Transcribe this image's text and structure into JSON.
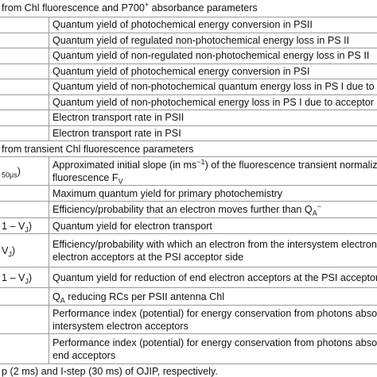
{
  "table": {
    "rows": [
      {
        "section": [
          [
            "from Chl fluorescence and P700",
            {
              "sup": "+"
            },
            " absorbance parameters"
          ]
        ]
      },
      {
        "right": [
          [
            "Quantum yield of photochemical energy conversion in PSII"
          ]
        ]
      },
      {
        "right": [
          [
            "Quantum yield of regulated non-photochemical energy loss in PS II"
          ]
        ]
      },
      {
        "right": [
          [
            "Quantum yield of non-regulated non-photochemical energy loss in PS II"
          ]
        ]
      },
      {
        "right": [
          [
            "Quantum yield of photochemical energy conversion in PSI"
          ]
        ]
      },
      {
        "right": [
          [
            "Quantum yield of non-photochemical quantum energy loss in PS I due to donor"
          ]
        ]
      },
      {
        "right": [
          [
            "Quantum yield of non-photochemical energy loss in PS I due to acceptor"
          ]
        ]
      },
      {
        "right": [
          [
            "Electron transport rate in PSII"
          ]
        ]
      },
      {
        "right": [
          [
            "Electron transport rate in PSI"
          ]
        ]
      },
      {
        "section": [
          [
            "from transient Chl fluorescence parameters"
          ]
        ]
      },
      {
        "left": [
          [
            {
              "sub": "50μs"
            },
            ")"
          ]
        ],
        "right": [
          [
            "Approximated initial slope (in ms",
            {
              "sup": "−1"
            },
            ") of the fluorescence transient normalized on"
          ],
          [
            "fluorescence F",
            {
              "sub": "V"
            }
          ]
        ]
      },
      {
        "right": [
          [
            "Maximum quantum yield for primary photochemistry"
          ]
        ]
      },
      {
        "right": [
          [
            "Efficiency/probability that an electron moves further than Q",
            {
              "sub": "A"
            },
            {
              "sup": "−"
            }
          ]
        ]
      },
      {
        "left": [
          [
            "1 – V",
            {
              "sub": "J"
            },
            ")"
          ]
        ],
        "right": [
          [
            "Quantum yield for electron transport"
          ]
        ]
      },
      {
        "left": [
          [
            "V",
            {
              "sub": "J"
            },
            ")"
          ]
        ],
        "right": [
          [
            "Efficiency/probability with which an electron from the intersystem electron carriers"
          ],
          [
            "electron acceptors at the PSI acceptor side"
          ]
        ]
      },
      {
        "left": [
          [
            "1 – V",
            {
              "sub": "J"
            },
            ")"
          ]
        ],
        "right": [
          [
            "Quantum yield for reduction of end electron acceptors at the PSI acceptor side"
          ]
        ]
      },
      {
        "right": [
          [
            "Q",
            {
              "sub": "A"
            },
            " reducing RCs per PSII antenna Chl"
          ]
        ]
      },
      {
        "right": [
          [
            "Performance index (potential) for energy conservation from photons absorbed"
          ],
          [
            "intersystem electron acceptors"
          ]
        ]
      },
      {
        "right": [
          [
            "Performance index (potential) for energy conservation from photons absorbed"
          ],
          [
            "end acceptors"
          ]
        ]
      }
    ],
    "footnote": "p (2 ms) and I-step (30 ms) of OJIP, respectively."
  }
}
